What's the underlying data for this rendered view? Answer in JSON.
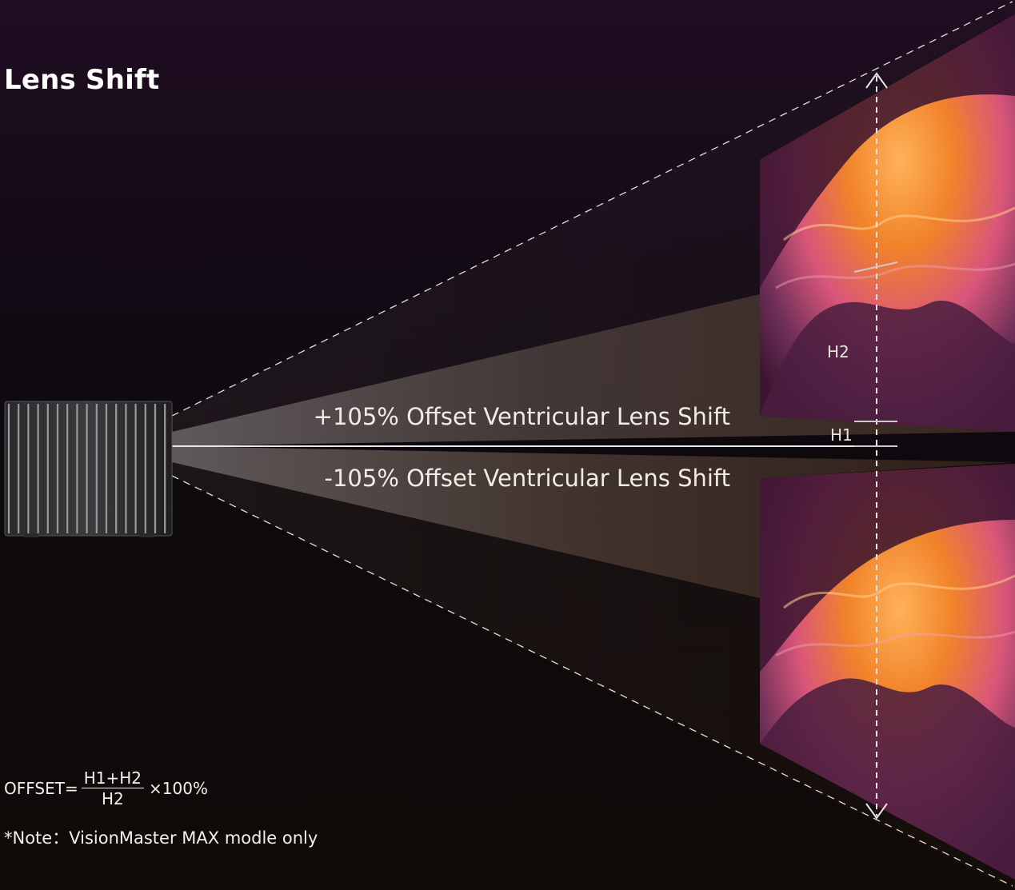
{
  "title": "Lens Shift",
  "diagram": {
    "up_shift_label": "+105% Offset Ventricular Lens Shift",
    "down_shift_label": "-105% Offset Ventricular Lens Shift",
    "h2_label": "H2",
    "h1_label": "H1"
  },
  "formula": {
    "lhs": "OFFSET=",
    "numerator": "H1+H2",
    "denominator": "H2",
    "multiplier": "×100%"
  },
  "note": "*Note：VisionMaster MAX modle only",
  "colors": {
    "beam_light": "#5a4a45",
    "beam_warm": "#4a3022",
    "canyon_orange": "#f28a2a",
    "canyon_pink": "#e07090",
    "canyon_purple": "#6a3a66"
  }
}
